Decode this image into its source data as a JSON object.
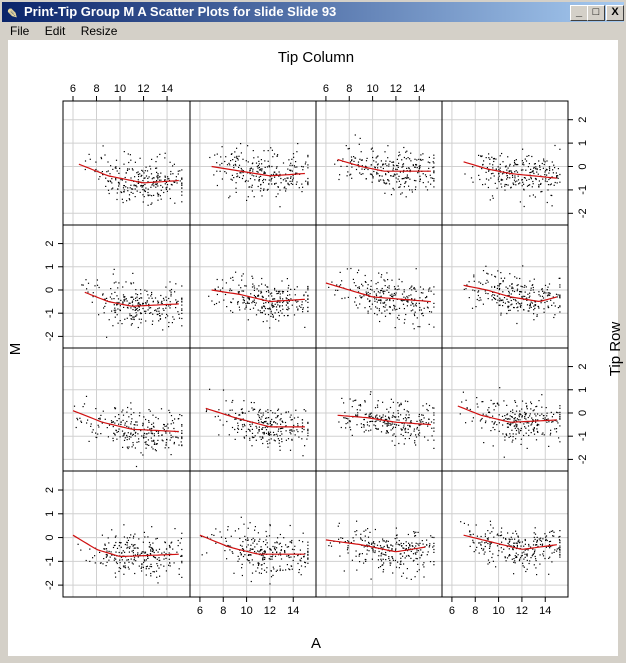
{
  "window": {
    "title": "Print-Tip Group M A Scatter Plots for slide Slide 93",
    "buttons": {
      "minimize": "_",
      "maximize": "□",
      "close": "X"
    }
  },
  "menu": {
    "items": [
      "File",
      "Edit",
      "Resize"
    ]
  },
  "chart_data": {
    "type": "scatter",
    "title": "Tip Column",
    "xlabel": "A",
    "ylabel": "M",
    "right_label": "Tip Row",
    "layout": "4x4 panels",
    "xlim": [
      5.15,
      15.95
    ],
    "ylim": [
      -2.5,
      2.8
    ],
    "xticks": [
      6,
      8,
      10,
      12,
      14
    ],
    "yticks": [
      -2,
      -1,
      0,
      1,
      2
    ],
    "grid": true,
    "colors": {
      "points": "#000000",
      "fit": "#d01010",
      "grid": "#d0d0d0"
    },
    "fit_type": "loess",
    "panels": [
      {
        "row": 1,
        "col": 1,
        "fit_x": [
          6.5,
          9,
          12,
          15
        ],
        "fit_y": [
          0.1,
          -0.4,
          -0.7,
          -0.6
        ]
      },
      {
        "row": 1,
        "col": 2,
        "fit_x": [
          7,
          9.5,
          12,
          15
        ],
        "fit_y": [
          0,
          -0.2,
          -0.4,
          -0.3
        ]
      },
      {
        "row": 1,
        "col": 3,
        "fit_x": [
          7,
          9,
          11,
          15
        ],
        "fit_y": [
          0.3,
          0,
          -0.2,
          -0.2
        ]
      },
      {
        "row": 1,
        "col": 4,
        "fit_x": [
          7,
          9,
          11,
          15
        ],
        "fit_y": [
          0.2,
          -0.1,
          -0.3,
          -0.5
        ]
      },
      {
        "row": 2,
        "col": 1,
        "fit_x": [
          7,
          9,
          11,
          15
        ],
        "fit_y": [
          -0.1,
          -0.5,
          -0.7,
          -0.6
        ]
      },
      {
        "row": 2,
        "col": 2,
        "fit_x": [
          7,
          9.5,
          12,
          15
        ],
        "fit_y": [
          0,
          -0.2,
          -0.5,
          -0.4
        ]
      },
      {
        "row": 2,
        "col": 3,
        "fit_x": [
          6,
          8,
          10,
          15
        ],
        "fit_y": [
          0.3,
          0,
          -0.3,
          -0.5
        ]
      },
      {
        "row": 2,
        "col": 4,
        "fit_x": [
          7,
          9,
          11,
          13.5,
          15
        ],
        "fit_y": [
          0.2,
          0,
          -0.3,
          -0.5,
          -0.3
        ]
      },
      {
        "row": 3,
        "col": 1,
        "fit_x": [
          6,
          8.5,
          11,
          15
        ],
        "fit_y": [
          0.1,
          -0.4,
          -0.7,
          -0.8
        ]
      },
      {
        "row": 3,
        "col": 2,
        "fit_x": [
          6.5,
          9,
          12,
          15
        ],
        "fit_y": [
          0.2,
          -0.2,
          -0.6,
          -0.6
        ]
      },
      {
        "row": 3,
        "col": 3,
        "fit_x": [
          7,
          9.5,
          12,
          15
        ],
        "fit_y": [
          -0.1,
          -0.2,
          -0.4,
          -0.5
        ]
      },
      {
        "row": 3,
        "col": 4,
        "fit_x": [
          6.5,
          8.5,
          11,
          15
        ],
        "fit_y": [
          0.3,
          -0.1,
          -0.4,
          -0.3
        ]
      },
      {
        "row": 4,
        "col": 1,
        "fit_x": [
          6,
          8,
          10,
          15
        ],
        "fit_y": [
          0.1,
          -0.5,
          -0.8,
          -0.7
        ]
      },
      {
        "row": 4,
        "col": 2,
        "fit_x": [
          6,
          8.5,
          11,
          15
        ],
        "fit_y": [
          0.1,
          -0.4,
          -0.7,
          -0.7
        ]
      },
      {
        "row": 4,
        "col": 3,
        "fit_x": [
          6,
          9,
          12,
          14.5
        ],
        "fit_y": [
          -0.1,
          -0.3,
          -0.6,
          -0.4
        ]
      },
      {
        "row": 4,
        "col": 4,
        "fit_x": [
          7,
          9.5,
          12,
          15
        ],
        "fit_y": [
          0.1,
          -0.2,
          -0.5,
          -0.3
        ]
      }
    ]
  }
}
